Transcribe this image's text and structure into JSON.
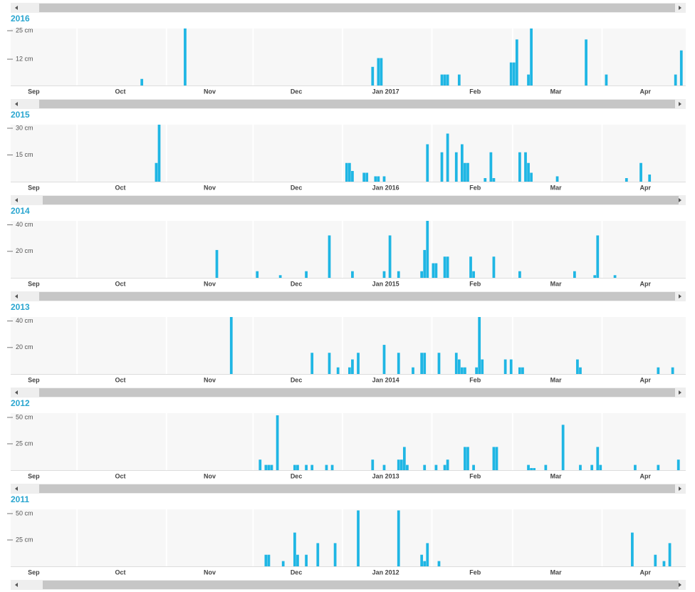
{
  "chart_data": [
    {
      "type": "bar",
      "title": "2016",
      "color": "#1fb6e4",
      "xlim": [
        7,
        241
      ],
      "ylim": [
        0,
        26
      ],
      "yticks": [
        {
          "value": 25,
          "label": "25 cm"
        },
        {
          "value": 12,
          "label": "12 cm"
        }
      ],
      "xticks": [
        {
          "value": 0,
          "label": "Sep"
        },
        {
          "value": 30,
          "label": "Oct"
        },
        {
          "value": 61,
          "label": "Nov"
        },
        {
          "value": 91,
          "label": "Dec"
        },
        {
          "value": 122,
          "label": "Jan 2017"
        },
        {
          "value": 153,
          "label": "Feb"
        },
        {
          "value": 181,
          "label": "Mar"
        },
        {
          "value": 212,
          "label": "Apr"
        }
      ],
      "x": [
        52,
        67,
        132,
        134,
        135,
        156,
        157,
        158,
        162,
        180,
        181,
        182,
        186,
        187,
        206,
        213,
        237,
        239
      ],
      "values": [
        3,
        26,
        8.5,
        12.5,
        12.5,
        5,
        5,
        5,
        5,
        10.5,
        10.5,
        21,
        5,
        26,
        21,
        5,
        5,
        16
      ]
    },
    {
      "type": "bar",
      "title": "2015",
      "color": "#1fb6e4",
      "xlim": [
        7,
        241
      ],
      "ylim": [
        0,
        32
      ],
      "yticks": [
        {
          "value": 30,
          "label": "30 cm"
        },
        {
          "value": 15,
          "label": "15 cm"
        }
      ],
      "xticks": [
        {
          "value": 0,
          "label": "Sep"
        },
        {
          "value": 30,
          "label": "Oct"
        },
        {
          "value": 61,
          "label": "Nov"
        },
        {
          "value": 91,
          "label": "Dec"
        },
        {
          "value": 122,
          "label": "Jan 2016"
        },
        {
          "value": 153,
          "label": "Feb"
        },
        {
          "value": 181,
          "label": "Mar"
        },
        {
          "value": 212,
          "label": "Apr"
        }
      ],
      "x": [
        57,
        58,
        123,
        124,
        125,
        129,
        130,
        133,
        134,
        136,
        151,
        156,
        158,
        161,
        163,
        164,
        165,
        171,
        173,
        174,
        183,
        185,
        186,
        187,
        196,
        220,
        225,
        228
      ],
      "values": [
        10.5,
        32,
        10.5,
        10.5,
        6,
        5,
        5,
        3,
        3,
        3,
        21,
        16.5,
        27,
        16.5,
        21,
        10.5,
        10.5,
        2,
        16.5,
        2,
        16.5,
        16.5,
        10.5,
        5,
        3,
        2,
        10.5,
        4
      ]
    },
    {
      "type": "bar",
      "title": "2014",
      "color": "#1fb6e4",
      "xlim": [
        7,
        241
      ],
      "ylim": [
        0,
        43
      ],
      "yticks": [
        {
          "value": 40,
          "label": "40 cm"
        },
        {
          "value": 20,
          "label": "20 cm"
        }
      ],
      "xticks": [
        {
          "value": 0,
          "label": "Sep"
        },
        {
          "value": 30,
          "label": "Oct"
        },
        {
          "value": 61,
          "label": "Nov"
        },
        {
          "value": 91,
          "label": "Dec"
        },
        {
          "value": 122,
          "label": "Jan 2015"
        },
        {
          "value": 153,
          "label": "Feb"
        },
        {
          "value": 181,
          "label": "Mar"
        },
        {
          "value": 212,
          "label": "Apr"
        }
      ],
      "x": [
        78,
        92,
        100,
        109,
        117,
        125,
        136,
        138,
        141,
        149,
        150,
        151,
        153,
        154,
        157,
        158,
        166,
        167,
        174,
        183,
        202,
        209,
        210,
        216
      ],
      "values": [
        21,
        5,
        2,
        5,
        32,
        5,
        5,
        32,
        5,
        5,
        21,
        43,
        11,
        11,
        16,
        16,
        16,
        5,
        16,
        5,
        5,
        2,
        32,
        2
      ]
    },
    {
      "type": "bar",
      "title": "2013",
      "color": "#1fb6e4",
      "xlim": [
        7,
        241
      ],
      "ylim": [
        0,
        43
      ],
      "yticks": [
        {
          "value": 40,
          "label": "40 cm"
        },
        {
          "value": 20,
          "label": "20 cm"
        }
      ],
      "xticks": [
        {
          "value": 0,
          "label": "Sep"
        },
        {
          "value": 30,
          "label": "Oct"
        },
        {
          "value": 61,
          "label": "Nov"
        },
        {
          "value": 91,
          "label": "Dec"
        },
        {
          "value": 122,
          "label": "Jan 2014"
        },
        {
          "value": 153,
          "label": "Feb"
        },
        {
          "value": 181,
          "label": "Mar"
        },
        {
          "value": 212,
          "label": "Apr"
        }
      ],
      "x": [
        83,
        111,
        117,
        120,
        124,
        125,
        127,
        136,
        141,
        146,
        149,
        150,
        155,
        161,
        162,
        163,
        164,
        168,
        169,
        170,
        178,
        180,
        183,
        184,
        203,
        204,
        231,
        236
      ],
      "values": [
        43,
        16,
        16,
        5,
        5,
        11,
        16,
        22,
        16,
        5,
        16,
        16,
        16,
        16,
        11,
        5,
        5,
        5,
        43,
        11,
        11,
        11,
        5,
        5,
        11,
        5,
        5,
        5
      ]
    },
    {
      "type": "bar",
      "title": "2012",
      "color": "#1fb6e4",
      "xlim": [
        7,
        241
      ],
      "ylim": [
        0,
        54
      ],
      "yticks": [
        {
          "value": 50,
          "label": "50 cm"
        },
        {
          "value": 25,
          "label": "25 cm"
        }
      ],
      "xticks": [
        {
          "value": 0,
          "label": "Sep"
        },
        {
          "value": 30,
          "label": "Oct"
        },
        {
          "value": 61,
          "label": "Nov"
        },
        {
          "value": 91,
          "label": "Dec"
        },
        {
          "value": 122,
          "label": "Jan 2013"
        },
        {
          "value": 153,
          "label": "Feb"
        },
        {
          "value": 181,
          "label": "Mar"
        },
        {
          "value": 212,
          "label": "Apr"
        }
      ],
      "x": [
        93,
        95,
        96,
        97,
        99,
        105,
        106,
        109,
        111,
        116,
        118,
        132,
        136,
        141,
        142,
        143,
        144,
        150,
        154,
        157,
        158,
        164,
        165,
        167,
        174,
        175,
        186,
        187,
        188,
        192,
        198,
        204,
        208,
        210,
        211,
        223,
        231,
        238
      ],
      "values": [
        10,
        5,
        5,
        5,
        52,
        5,
        5,
        5,
        5,
        5,
        5,
        10,
        5,
        10,
        10,
        22,
        5,
        5,
        5,
        5,
        10,
        22,
        22,
        5,
        22,
        22,
        5,
        2,
        2,
        5,
        43,
        5,
        5,
        22,
        5,
        5,
        5,
        10
      ]
    },
    {
      "type": "bar",
      "title": "2011",
      "color": "#1fb6e4",
      "xlim": [
        7,
        241
      ],
      "ylim": [
        0,
        54
      ],
      "yticks": [
        {
          "value": 50,
          "label": "50 cm"
        },
        {
          "value": 25,
          "label": "25 cm"
        }
      ],
      "xticks": [
        {
          "value": 0,
          "label": "Sep"
        },
        {
          "value": 30,
          "label": "Oct"
        },
        {
          "value": 61,
          "label": "Nov"
        },
        {
          "value": 91,
          "label": "Dec"
        },
        {
          "value": 122,
          "label": "Jan 2012"
        },
        {
          "value": 153,
          "label": "Feb"
        },
        {
          "value": 181,
          "label": "Mar"
        },
        {
          "value": 212,
          "label": "Apr"
        }
      ],
      "x": [
        95,
        96,
        101,
        105,
        106,
        109,
        113,
        119,
        127,
        141,
        149,
        150,
        151,
        155,
        222,
        230,
        233,
        235
      ],
      "values": [
        11,
        11,
        5,
        32,
        11,
        11,
        22,
        22,
        53,
        53,
        11,
        5,
        22,
        5,
        32,
        11,
        5,
        22
      ]
    }
  ]
}
